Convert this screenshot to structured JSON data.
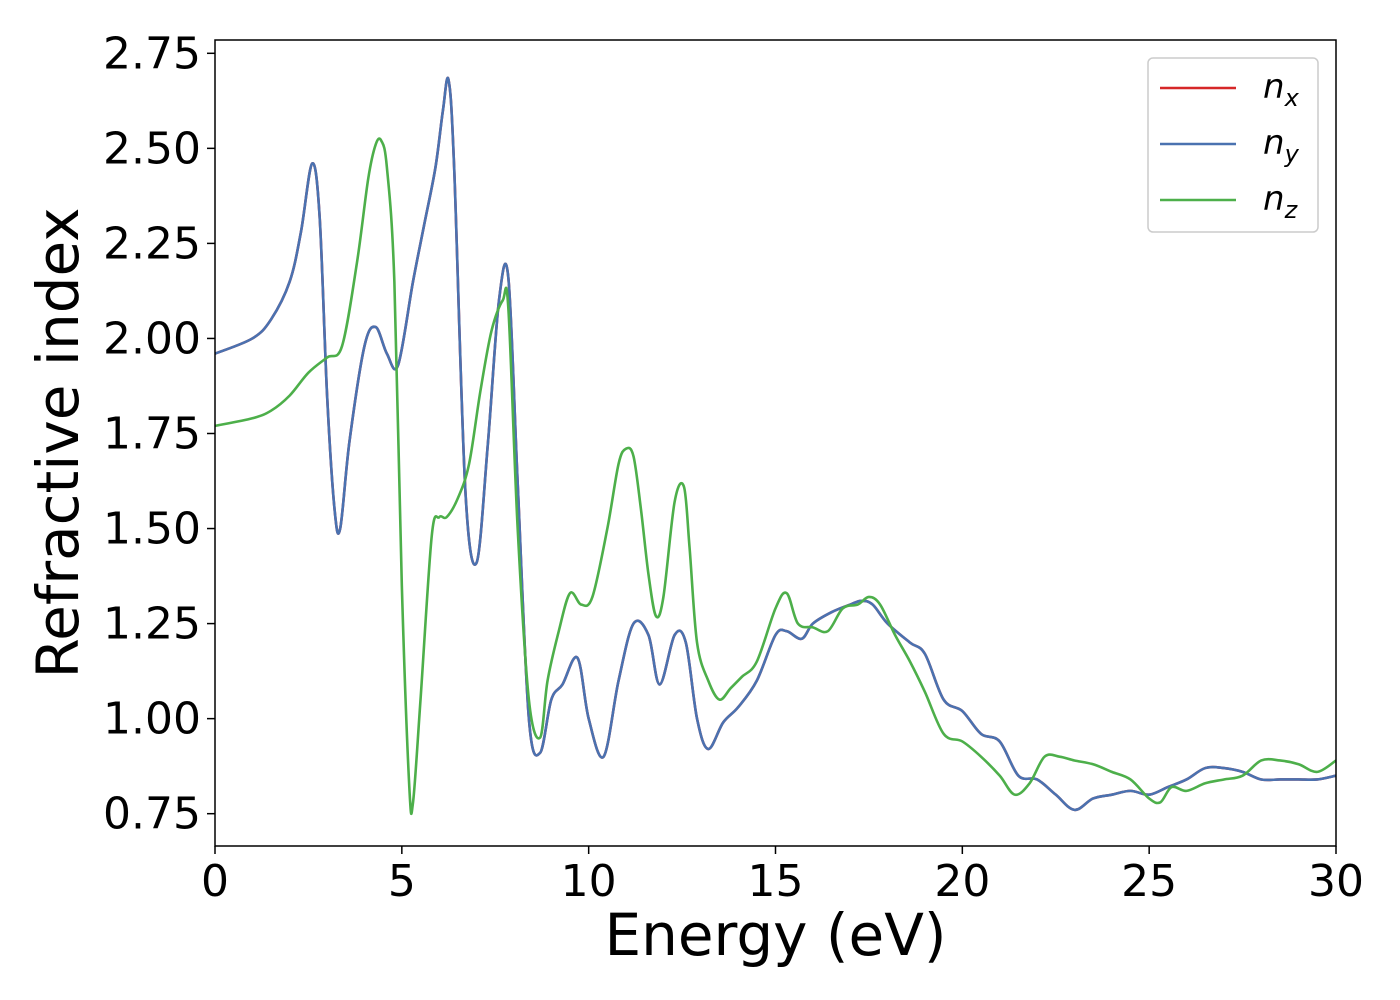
{
  "chart_data": {
    "type": "line",
    "title": "",
    "xlabel": "Energy (eV)",
    "ylabel": "Refractive index",
    "xlim": [
      0,
      30
    ],
    "ylim": [
      0.665,
      2.785
    ],
    "xticks": [
      0,
      5,
      10,
      15,
      20,
      25,
      30
    ],
    "xtick_labels": [
      "0",
      "5",
      "10",
      "15",
      "20",
      "25",
      "30"
    ],
    "yticks": [
      0.75,
      1.0,
      1.25,
      1.5,
      1.75,
      2.0,
      2.25,
      2.5,
      2.75
    ],
    "ytick_labels": [
      "0.75",
      "1.00",
      "1.25",
      "1.50",
      "1.75",
      "2.00",
      "2.25",
      "2.50",
      "2.75"
    ],
    "grid": false,
    "legend_position": "top-right",
    "series": [
      {
        "name": "n_x",
        "label_main": "n",
        "label_sub": "x",
        "color": "#d62728",
        "x": [
          0,
          1,
          1.5,
          2,
          2.3,
          2.6,
          2.8,
          3.0,
          3.2,
          3.35,
          3.6,
          4.0,
          4.3,
          4.6,
          4.9,
          5.3,
          5.6,
          5.9,
          6.1,
          6.25,
          6.4,
          6.7,
          7.0,
          7.3,
          7.6,
          7.85,
          8.1,
          8.4,
          8.7,
          9.0,
          9.3,
          9.7,
          10.0,
          10.4,
          10.8,
          11.2,
          11.6,
          11.9,
          12.3,
          12.6,
          12.9,
          13.2,
          13.6,
          14.0,
          14.5,
          15.0,
          15.3,
          15.7,
          16.0,
          16.5,
          17.0,
          17.3,
          17.6,
          18.0,
          18.6,
          19.0,
          19.5,
          20.0,
          20.5,
          21.0,
          21.5,
          22.0,
          22.5,
          23.0,
          23.5,
          24.0,
          24.5,
          25.0,
          25.5,
          26.0,
          26.5,
          27.0,
          27.5,
          28.0,
          28.5,
          29.0,
          29.5,
          30.0
        ],
        "y": [
          1.96,
          2.0,
          2.05,
          2.15,
          2.28,
          2.46,
          2.32,
          1.85,
          1.55,
          1.5,
          1.73,
          1.98,
          2.03,
          1.96,
          1.93,
          2.15,
          2.3,
          2.45,
          2.6,
          2.68,
          2.45,
          1.6,
          1.41,
          1.72,
          2.1,
          2.16,
          1.62,
          1.0,
          0.91,
          1.05,
          1.09,
          1.16,
          1.0,
          0.9,
          1.1,
          1.25,
          1.22,
          1.09,
          1.22,
          1.2,
          1.0,
          0.92,
          0.99,
          1.03,
          1.1,
          1.22,
          1.23,
          1.21,
          1.25,
          1.28,
          1.3,
          1.31,
          1.3,
          1.25,
          1.2,
          1.17,
          1.05,
          1.02,
          0.96,
          0.94,
          0.85,
          0.84,
          0.8,
          0.76,
          0.79,
          0.8,
          0.81,
          0.8,
          0.82,
          0.84,
          0.87,
          0.87,
          0.86,
          0.84,
          0.84,
          0.84,
          0.84,
          0.85
        ]
      },
      {
        "name": "n_y",
        "label_main": "n",
        "label_sub": "y",
        "color": "#4a72b0",
        "x": [
          0,
          1,
          1.5,
          2,
          2.3,
          2.6,
          2.8,
          3.0,
          3.2,
          3.35,
          3.6,
          4.0,
          4.3,
          4.6,
          4.9,
          5.3,
          5.6,
          5.9,
          6.1,
          6.25,
          6.4,
          6.7,
          7.0,
          7.3,
          7.6,
          7.85,
          8.1,
          8.4,
          8.7,
          9.0,
          9.3,
          9.7,
          10.0,
          10.4,
          10.8,
          11.2,
          11.6,
          11.9,
          12.3,
          12.6,
          12.9,
          13.2,
          13.6,
          14.0,
          14.5,
          15.0,
          15.3,
          15.7,
          16.0,
          16.5,
          17.0,
          17.3,
          17.6,
          18.0,
          18.6,
          19.0,
          19.5,
          20.0,
          20.5,
          21.0,
          21.5,
          22.0,
          22.5,
          23.0,
          23.5,
          24.0,
          24.5,
          25.0,
          25.5,
          26.0,
          26.5,
          27.0,
          27.5,
          28.0,
          28.5,
          29.0,
          29.5,
          30.0
        ],
        "y": [
          1.96,
          2.0,
          2.05,
          2.15,
          2.28,
          2.46,
          2.32,
          1.85,
          1.55,
          1.5,
          1.73,
          1.98,
          2.03,
          1.96,
          1.93,
          2.15,
          2.3,
          2.45,
          2.6,
          2.68,
          2.45,
          1.6,
          1.41,
          1.72,
          2.1,
          2.16,
          1.62,
          1.0,
          0.91,
          1.05,
          1.09,
          1.16,
          1.0,
          0.9,
          1.1,
          1.25,
          1.22,
          1.09,
          1.22,
          1.2,
          1.0,
          0.92,
          0.99,
          1.03,
          1.1,
          1.22,
          1.23,
          1.21,
          1.25,
          1.28,
          1.3,
          1.31,
          1.3,
          1.25,
          1.2,
          1.17,
          1.05,
          1.02,
          0.96,
          0.94,
          0.85,
          0.84,
          0.8,
          0.76,
          0.79,
          0.8,
          0.81,
          0.8,
          0.82,
          0.84,
          0.87,
          0.87,
          0.86,
          0.84,
          0.84,
          0.84,
          0.84,
          0.85
        ]
      },
      {
        "name": "n_z",
        "label_main": "n",
        "label_sub": "z",
        "color": "#4daf4a",
        "x": [
          0,
          1,
          1.5,
          2,
          2.5,
          3.0,
          3.4,
          3.8,
          4.1,
          4.3,
          4.45,
          4.6,
          4.8,
          5.0,
          5.2,
          5.3,
          5.5,
          5.8,
          6.0,
          6.2,
          6.5,
          6.8,
          7.1,
          7.4,
          7.7,
          7.85,
          8.1,
          8.4,
          8.7,
          8.9,
          9.2,
          9.5,
          9.8,
          10.1,
          10.5,
          10.8,
          11.0,
          11.2,
          11.4,
          11.6,
          11.8,
          12.0,
          12.3,
          12.55,
          12.7,
          12.9,
          13.2,
          13.5,
          13.8,
          14.1,
          14.5,
          15.0,
          15.3,
          15.6,
          16.0,
          16.4,
          16.8,
          17.2,
          17.5,
          17.8,
          18.2,
          18.6,
          19.0,
          19.5,
          20.0,
          20.5,
          21.0,
          21.4,
          21.8,
          22.2,
          22.6,
          23.0,
          23.5,
          24.0,
          24.5,
          25.0,
          25.3,
          25.6,
          26.0,
          26.5,
          27.0,
          27.5,
          28.0,
          28.5,
          29.0,
          29.5,
          30.0
        ],
        "y": [
          1.77,
          1.79,
          1.81,
          1.85,
          1.91,
          1.95,
          1.98,
          2.2,
          2.42,
          2.51,
          2.52,
          2.45,
          2.15,
          1.35,
          0.82,
          0.78,
          1.05,
          1.48,
          1.53,
          1.53,
          1.58,
          1.67,
          1.86,
          2.02,
          2.1,
          2.08,
          1.5,
          1.05,
          0.95,
          1.1,
          1.23,
          1.33,
          1.3,
          1.32,
          1.5,
          1.67,
          1.71,
          1.69,
          1.55,
          1.38,
          1.27,
          1.32,
          1.57,
          1.61,
          1.45,
          1.2,
          1.1,
          1.05,
          1.08,
          1.11,
          1.15,
          1.29,
          1.33,
          1.25,
          1.24,
          1.23,
          1.29,
          1.3,
          1.32,
          1.3,
          1.22,
          1.15,
          1.07,
          0.96,
          0.94,
          0.9,
          0.85,
          0.8,
          0.83,
          0.9,
          0.9,
          0.89,
          0.88,
          0.86,
          0.84,
          0.79,
          0.78,
          0.82,
          0.81,
          0.83,
          0.84,
          0.85,
          0.89,
          0.89,
          0.88,
          0.86,
          0.89
        ]
      }
    ]
  }
}
